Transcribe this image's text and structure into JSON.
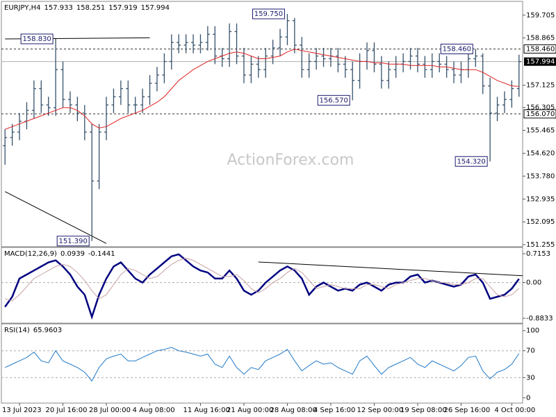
{
  "chart_data": [
    {
      "type": "ohlc",
      "title": "EURJPY,H4",
      "header_values": [
        157.933,
        158.251,
        157.919,
        157.994
      ],
      "watermark": "ActionForex.com",
      "color": "#34506b",
      "categories": [
        null,
        null,
        "13 Jul 2023",
        null,
        null,
        null,
        null,
        null,
        "20 Jul 16:00",
        null,
        null,
        null,
        null,
        null,
        "28 Jul 00:00",
        null,
        null,
        null,
        null,
        null,
        "4 Aug 08:00",
        null,
        null,
        null,
        null,
        null,
        null,
        "11 Aug 16:00",
        null,
        null,
        null,
        null,
        null,
        "21 Aug 00:00",
        null,
        null,
        null,
        null,
        null,
        "28 Aug 08:00",
        null,
        null,
        null,
        null,
        null,
        "4 Sep 16:00",
        null,
        null,
        null,
        null,
        null,
        "12 Sep 00:00",
        null,
        null,
        null,
        null,
        null,
        "19 Sep 08:00",
        null,
        null,
        null,
        null,
        null,
        "26 Sep 16:00",
        null,
        null,
        null,
        null,
        null,
        null,
        "4 Oct 00:00",
        null
      ],
      "open": [
        154.9,
        155.2,
        155.4,
        155.8,
        156.2,
        157.0,
        156.4,
        156.3,
        157.7,
        156.6,
        156.4,
        156.1,
        155.4,
        153.6,
        155.4,
        156.4,
        156.7,
        157.0,
        156.4,
        156.4,
        156.7,
        157.2,
        157.5,
        158.0,
        158.7,
        158.6,
        158.7,
        158.6,
        158.7,
        159.0,
        158.2,
        158.1,
        159.1,
        158.2,
        157.5,
        157.9,
        157.7,
        158.2,
        158.5,
        158.9,
        159.5,
        158.6,
        157.7,
        158.0,
        158.2,
        158.1,
        158.2,
        157.9,
        157.7,
        157.3,
        158.0,
        158.4,
        157.9,
        157.3,
        157.7,
        157.9,
        158.0,
        158.2,
        157.9,
        157.7,
        158.0,
        157.9,
        157.7,
        157.5,
        157.7,
        158.1,
        158.2,
        157.1,
        156.1,
        156.4,
        156.6,
        157.0
      ],
      "high": [
        155.5,
        155.7,
        156.1,
        156.5,
        157.3,
        157.3,
        156.7,
        158.83,
        158.0,
        156.9,
        156.7,
        156.4,
        155.7,
        155.7,
        156.7,
        157.0,
        157.3,
        157.3,
        156.7,
        157.0,
        157.5,
        157.8,
        158.3,
        159.0,
        159.0,
        159.0,
        159.0,
        159.0,
        159.3,
        159.3,
        158.5,
        159.4,
        159.4,
        158.5,
        158.2,
        158.2,
        158.5,
        158.8,
        159.2,
        159.75,
        159.6,
        158.9,
        158.3,
        158.5,
        158.5,
        158.5,
        158.5,
        158.2,
        158.0,
        158.3,
        158.7,
        158.7,
        158.2,
        158.0,
        158.2,
        158.3,
        158.5,
        158.5,
        158.2,
        158.3,
        158.3,
        158.2,
        158.0,
        158.0,
        158.4,
        158.46,
        158.3,
        157.4,
        156.7,
        156.9,
        157.3,
        158.251
      ],
      "low": [
        154.2,
        154.9,
        155.1,
        155.5,
        155.9,
        156.1,
        156.0,
        156.0,
        156.3,
        156.1,
        155.8,
        155.1,
        151.39,
        153.3,
        155.1,
        156.1,
        156.4,
        156.1,
        156.1,
        156.1,
        156.4,
        156.9,
        157.2,
        157.7,
        158.3,
        158.3,
        158.3,
        158.3,
        158.4,
        157.9,
        157.8,
        157.8,
        157.9,
        157.2,
        157.2,
        157.4,
        157.4,
        157.9,
        158.2,
        158.6,
        158.3,
        157.4,
        157.4,
        157.7,
        157.8,
        157.8,
        157.6,
        157.4,
        156.57,
        157.0,
        157.7,
        157.6,
        157.0,
        157.0,
        157.4,
        157.6,
        157.7,
        157.6,
        157.4,
        157.4,
        157.6,
        157.4,
        157.2,
        157.2,
        157.4,
        157.8,
        156.8,
        154.32,
        155.8,
        156.1,
        156.3,
        156.7
      ],
      "close": [
        155.2,
        155.4,
        155.8,
        156.2,
        157.0,
        156.4,
        156.3,
        157.7,
        156.6,
        156.4,
        156.1,
        155.4,
        153.6,
        155.4,
        156.4,
        156.7,
        157.0,
        156.4,
        156.4,
        156.7,
        157.2,
        157.5,
        158.0,
        158.7,
        158.6,
        158.7,
        158.6,
        158.7,
        159.0,
        158.2,
        158.1,
        159.1,
        158.2,
        157.5,
        157.9,
        157.7,
        158.2,
        158.5,
        158.9,
        159.5,
        158.6,
        157.7,
        158.0,
        158.2,
        158.1,
        158.2,
        157.9,
        157.7,
        157.3,
        158.0,
        158.4,
        157.9,
        157.3,
        157.7,
        157.9,
        158.0,
        158.2,
        157.9,
        157.7,
        158.0,
        157.9,
        157.7,
        157.5,
        157.7,
        158.1,
        158.2,
        157.1,
        156.1,
        156.4,
        156.6,
        157.0,
        157.994
      ],
      "series": [
        {
          "color": "#e02020",
          "values": [
            155.5,
            155.6,
            155.7,
            155.8,
            155.9,
            156.0,
            156.1,
            156.2,
            156.3,
            156.3,
            156.2,
            156.0,
            155.7,
            155.55,
            155.6,
            155.75,
            155.9,
            156.0,
            156.1,
            156.2,
            156.35,
            156.5,
            156.7,
            157.0,
            157.3,
            157.5,
            157.7,
            157.85,
            158.0,
            158.1,
            158.2,
            158.3,
            158.35,
            158.3,
            158.2,
            158.1,
            158.1,
            158.15,
            158.2,
            158.35,
            158.45,
            158.4,
            158.35,
            158.3,
            158.25,
            158.2,
            158.15,
            158.1,
            158.05,
            158.0,
            158.0,
            157.95,
            157.95,
            157.9,
            157.9,
            157.9,
            157.85,
            157.85,
            157.85,
            157.85,
            157.8,
            157.8,
            157.75,
            157.7,
            157.7,
            157.7,
            157.6,
            157.45,
            157.3,
            157.2,
            157.1,
            157.08
          ]
        }
      ],
      "ylim": [
        151.18,
        160.16
      ],
      "yticks": [
        {
          "value": 159.705,
          "label": "159.705"
        },
        158.865,
        157.125,
        156.305,
        155.465,
        {
          "value": 154.62,
          "label": "154.620"
        },
        {
          "value": 153.78,
          "label": "153.780"
        },
        152.935,
        152.095,
        151.255
      ],
      "levels": [
        {
          "value": 158.46,
          "label": "158.460"
        },
        {
          "value": 156.07,
          "label": "156.070"
        }
      ],
      "last_price": 157.994,
      "annotations": [
        {
          "value": 158.83,
          "label": "158.830"
        },
        {
          "value": 159.75,
          "label": "159.750"
        },
        {
          "value": 156.57,
          "label": "156.570"
        },
        {
          "value": 154.32,
          "label": "154.320"
        },
        {
          "value": 151.39,
          "label": "151.390"
        },
        {
          "value": 158.46,
          "label": "158.460"
        }
      ],
      "trendlines": [
        {
          "x": [
            0,
            20
          ],
          "y": [
            158.83,
            158.87
          ]
        },
        {
          "x": [
            0,
            14
          ],
          "y": [
            153.21,
            151.3
          ]
        }
      ]
    },
    {
      "type": "line",
      "title": "MACD(12,26,9)",
      "series": [
        {
          "color": "#000080",
          "width": 2.5,
          "values": [
            -0.6,
            -0.35,
            0.1,
            0.2,
            0.3,
            0.4,
            0.5,
            0.55,
            0.4,
            0.2,
            -0.1,
            -0.3,
            -0.85,
            -0.3,
            0.1,
            0.4,
            0.5,
            0.3,
            0.1,
            0.0,
            0.2,
            0.35,
            0.5,
            0.65,
            0.7,
            0.55,
            0.4,
            0.3,
            0.25,
            0.1,
            0.1,
            0.3,
            0.1,
            -0.2,
            -0.3,
            -0.2,
            0.0,
            0.15,
            0.3,
            0.4,
            0.3,
            0.1,
            -0.3,
            -0.1,
            0.0,
            -0.1,
            -0.2,
            -0.15,
            -0.2,
            -0.05,
            0.0,
            -0.1,
            -0.2,
            -0.05,
            0.0,
            0.0,
            0.15,
            0.2,
            0.0,
            0.05,
            0.0,
            -0.05,
            -0.1,
            -0.05,
            0.15,
            0.2,
            0.0,
            -0.4,
            -0.35,
            -0.3,
            -0.15,
            0.0939
          ]
        },
        {
          "color": "#c8a0a0",
          "width": 1,
          "values": [
            -0.4,
            -0.45,
            -0.3,
            -0.1,
            0.1,
            0.2,
            0.3,
            0.4,
            0.45,
            0.4,
            0.25,
            0.05,
            -0.2,
            -0.4,
            -0.3,
            -0.05,
            0.2,
            0.35,
            0.3,
            0.2,
            0.1,
            0.15,
            0.3,
            0.45,
            0.55,
            0.6,
            0.55,
            0.45,
            0.35,
            0.25,
            0.15,
            0.15,
            0.2,
            0.05,
            -0.15,
            -0.25,
            -0.15,
            0.0,
            0.1,
            0.25,
            0.35,
            0.25,
            0.05,
            -0.15,
            -0.1,
            -0.05,
            -0.1,
            -0.15,
            -0.15,
            -0.15,
            -0.05,
            -0.05,
            -0.1,
            -0.15,
            -0.05,
            0.0,
            0.05,
            0.1,
            0.1,
            0.05,
            0.0,
            0.0,
            -0.05,
            -0.05,
            0.0,
            0.1,
            0.1,
            -0.1,
            -0.3,
            -0.35,
            -0.3,
            -0.1441
          ]
        }
      ],
      "ylim": [
        -1.004,
        0.836
      ],
      "yticks": [
        0.7153,
        {
          "value": 0,
          "label": "0.00"
        },
        -0.8833
      ],
      "levels": [
        0
      ],
      "trendlines": [
        {
          "x": [
            35,
            71.5
          ],
          "y": [
            0.51,
            0.17
          ]
        }
      ]
    },
    {
      "type": "line",
      "title": "RSI(14)",
      "series": [
        {
          "color": "#1e78c8",
          "width": 1,
          "values": [
            45,
            50,
            55,
            60,
            68,
            55,
            52,
            70,
            55,
            50,
            45,
            38,
            25,
            45,
            58,
            62,
            65,
            55,
            55,
            60,
            65,
            70,
            72,
            75,
            70,
            68,
            65,
            62,
            65,
            50,
            45,
            62,
            45,
            35,
            45,
            42,
            55,
            60,
            65,
            72,
            55,
            40,
            48,
            55,
            50,
            52,
            45,
            40,
            35,
            55,
            62,
            48,
            35,
            45,
            50,
            55,
            60,
            50,
            45,
            55,
            50,
            45,
            40,
            48,
            60,
            62,
            40,
            28,
            38,
            42,
            50,
            65.9603
          ]
        }
      ],
      "ylim": [
        -8,
        108
      ],
      "yticks": [
        100,
        70,
        30,
        0
      ],
      "levels": [
        70,
        30
      ]
    }
  ]
}
